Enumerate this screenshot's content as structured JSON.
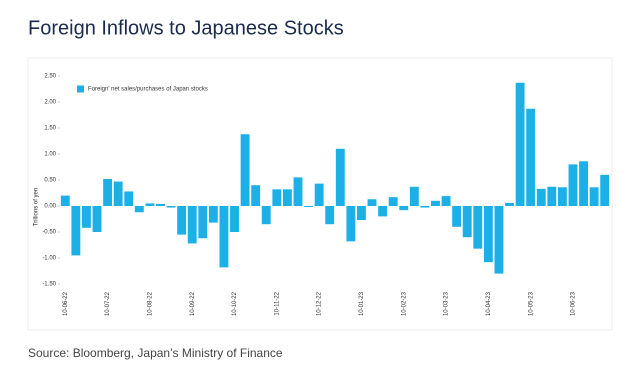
{
  "chart_data": {
    "type": "bar",
    "title": "Foreign Inflows to Japanese Stocks",
    "ylabel": "Trillions of yen",
    "source": "Source: Bloomberg, Japan’s Ministry of Finance",
    "categories": [
      "10-06-22",
      null,
      null,
      null,
      "10-07-22",
      null,
      null,
      null,
      "10-08-22",
      null,
      null,
      null,
      "10-09-22",
      null,
      null,
      null,
      "10-10-22",
      null,
      null,
      null,
      "10-11-22",
      null,
      null,
      null,
      "10-12-22",
      null,
      null,
      null,
      "10-01-23",
      null,
      null,
      null,
      "10-02-23",
      null,
      null,
      null,
      "10-03-23",
      null,
      null,
      null,
      "10-04-23",
      null,
      null,
      null,
      "10-05-23",
      null,
      null,
      null,
      "10-06-23",
      null,
      null,
      null
    ],
    "series": [
      {
        "name": "Foreign' net sales/purchases of Japan stocks",
        "color": "#1cb0e6",
        "values": [
          0.2,
          -0.95,
          -0.42,
          -0.5,
          0.52,
          0.47,
          0.28,
          -0.12,
          0.05,
          0.04,
          -0.03,
          -0.55,
          -0.72,
          -0.62,
          -0.32,
          -1.18,
          -0.5,
          1.38,
          0.4,
          -0.35,
          0.32,
          0.32,
          0.55,
          -0.02,
          0.43,
          -0.35,
          1.1,
          -0.68,
          -0.27,
          0.13,
          -0.2,
          0.17,
          -0.08,
          0.37,
          -0.03,
          0.1,
          0.19,
          -0.4,
          -0.6,
          -0.82,
          -1.08,
          -1.3,
          0.06,
          2.37,
          1.87,
          0.33,
          0.37,
          0.36,
          0.8,
          0.86,
          0.36,
          0.6
        ]
      }
    ],
    "ylim": [
      -1.5,
      2.5
    ],
    "yticks": [
      {
        "value": 2.5,
        "label": "2.50"
      },
      {
        "value": 2,
        "label": "2.00"
      },
      {
        "value": 1.5,
        "label": "1.50"
      },
      {
        "value": 1,
        "label": "1.00"
      },
      {
        "value": 0.5,
        "label": "0.50"
      },
      {
        "value": 0,
        "label": "0.00"
      },
      {
        "value": -0.5,
        "label": "-0.50"
      },
      {
        "value": -1,
        "label": "-1.00"
      },
      {
        "value": -1.5,
        "label": "-1.50"
      }
    ],
    "legend": "top-left"
  }
}
